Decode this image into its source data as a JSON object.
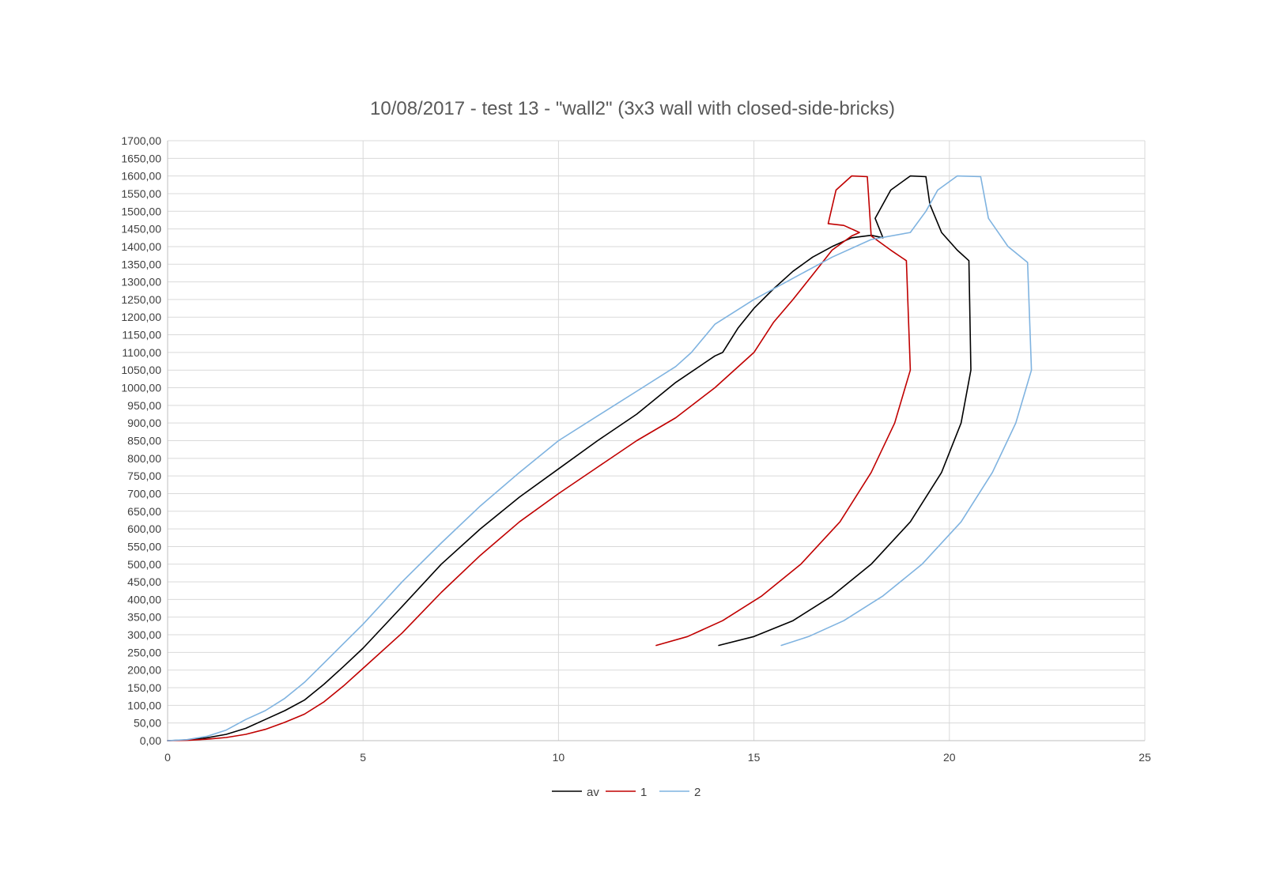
{
  "chart_data": {
    "type": "line",
    "title": "10/08/2017 - test 13 - \"wall2\" (3x3 wall with closed-side-bricks)",
    "xlabel": "",
    "ylabel": "",
    "xlim": [
      0,
      25
    ],
    "ylim": [
      0,
      1700
    ],
    "x_ticks": [
      "0",
      "5",
      "10",
      "15",
      "20",
      "25"
    ],
    "y_ticks": [
      "0,00",
      "50,00",
      "100,00",
      "150,00",
      "200,00",
      "250,00",
      "300,00",
      "350,00",
      "400,00",
      "450,00",
      "500,00",
      "550,00",
      "600,00",
      "650,00",
      "700,00",
      "750,00",
      "800,00",
      "850,00",
      "900,00",
      "950,00",
      "1000,00",
      "1050,00",
      "1100,00",
      "1150,00",
      "1200,00",
      "1250,00",
      "1300,00",
      "1350,00",
      "1400,00",
      "1450,00",
      "1500,00",
      "1550,00",
      "1600,00",
      "1650,00",
      "1700,00"
    ],
    "grid": true,
    "legend_position": "bottom",
    "series": [
      {
        "name": "av",
        "color": "#000000",
        "points": [
          [
            0,
            0
          ],
          [
            0.5,
            2
          ],
          [
            1,
            8
          ],
          [
            1.5,
            18
          ],
          [
            2,
            35
          ],
          [
            2.5,
            60
          ],
          [
            3,
            85
          ],
          [
            3.5,
            115
          ],
          [
            4,
            160
          ],
          [
            4.5,
            210
          ],
          [
            5,
            262
          ],
          [
            6,
            380
          ],
          [
            7,
            500
          ],
          [
            8,
            600
          ],
          [
            9,
            690
          ],
          [
            10,
            770
          ],
          [
            11,
            850
          ],
          [
            12,
            925
          ],
          [
            13,
            1015
          ],
          [
            14,
            1090
          ],
          [
            14.2,
            1100
          ],
          [
            14.6,
            1170
          ],
          [
            15,
            1225
          ],
          [
            15.5,
            1280
          ],
          [
            16,
            1330
          ],
          [
            16.5,
            1370
          ],
          [
            17,
            1400
          ],
          [
            17.5,
            1425
          ],
          [
            18,
            1432
          ],
          [
            18.3,
            1425
          ],
          [
            18.1,
            1480
          ],
          [
            18.5,
            1560
          ],
          [
            19,
            1600
          ],
          [
            19.4,
            1598
          ],
          [
            19.5,
            1520
          ],
          [
            19.8,
            1440
          ],
          [
            20.2,
            1390
          ],
          [
            20.5,
            1360
          ],
          [
            20.55,
            1050
          ],
          [
            20.3,
            900
          ],
          [
            19.8,
            760
          ],
          [
            19,
            620
          ],
          [
            18,
            500
          ],
          [
            17,
            410
          ],
          [
            16,
            340
          ],
          [
            15,
            295
          ],
          [
            14.1,
            270
          ]
        ]
      },
      {
        "name": "1",
        "color": "#c00000",
        "points": [
          [
            0,
            0
          ],
          [
            0.5,
            1
          ],
          [
            1,
            4
          ],
          [
            1.5,
            9
          ],
          [
            2,
            18
          ],
          [
            2.5,
            32
          ],
          [
            3,
            52
          ],
          [
            3.5,
            75
          ],
          [
            4,
            110
          ],
          [
            4.5,
            155
          ],
          [
            5,
            205
          ],
          [
            6,
            305
          ],
          [
            7,
            420
          ],
          [
            8,
            525
          ],
          [
            9,
            620
          ],
          [
            10,
            700
          ],
          [
            11,
            775
          ],
          [
            12,
            850
          ],
          [
            13,
            915
          ],
          [
            14,
            1000
          ],
          [
            15,
            1100
          ],
          [
            15.5,
            1185
          ],
          [
            16,
            1250
          ],
          [
            16.5,
            1320
          ],
          [
            17,
            1390
          ],
          [
            17.5,
            1430
          ],
          [
            17.7,
            1440
          ],
          [
            17.3,
            1460
          ],
          [
            16.9,
            1465
          ],
          [
            17.1,
            1560
          ],
          [
            17.5,
            1600
          ],
          [
            17.9,
            1598
          ],
          [
            18,
            1430
          ],
          [
            18.5,
            1390
          ],
          [
            18.9,
            1360
          ],
          [
            19,
            1050
          ],
          [
            18.6,
            900
          ],
          [
            18,
            760
          ],
          [
            17.2,
            620
          ],
          [
            16.2,
            500
          ],
          [
            15.2,
            410
          ],
          [
            14.2,
            340
          ],
          [
            13.3,
            295
          ],
          [
            12.5,
            270
          ]
        ]
      },
      {
        "name": "2",
        "color": "#7fb3e0",
        "points": [
          [
            0,
            0
          ],
          [
            0.5,
            3
          ],
          [
            1,
            12
          ],
          [
            1.5,
            30
          ],
          [
            2,
            60
          ],
          [
            2.5,
            85
          ],
          [
            3,
            120
          ],
          [
            3.5,
            165
          ],
          [
            4,
            220
          ],
          [
            4.5,
            275
          ],
          [
            5,
            330
          ],
          [
            6,
            450
          ],
          [
            7,
            560
          ],
          [
            8,
            665
          ],
          [
            9,
            760
          ],
          [
            10,
            850
          ],
          [
            11,
            920
          ],
          [
            12,
            990
          ],
          [
            13,
            1060
          ],
          [
            13.4,
            1100
          ],
          [
            14,
            1180
          ],
          [
            15,
            1250
          ],
          [
            16,
            1310
          ],
          [
            17,
            1370
          ],
          [
            18,
            1420
          ],
          [
            19,
            1440
          ],
          [
            19.4,
            1500
          ],
          [
            19.7,
            1560
          ],
          [
            20.2,
            1600
          ],
          [
            20.8,
            1598
          ],
          [
            21,
            1480
          ],
          [
            21.5,
            1400
          ],
          [
            22,
            1355
          ],
          [
            22.1,
            1050
          ],
          [
            21.7,
            900
          ],
          [
            21.1,
            760
          ],
          [
            20.3,
            620
          ],
          [
            19.3,
            500
          ],
          [
            18.3,
            410
          ],
          [
            17.3,
            340
          ],
          [
            16.4,
            295
          ],
          [
            15.7,
            270
          ]
        ]
      }
    ]
  }
}
